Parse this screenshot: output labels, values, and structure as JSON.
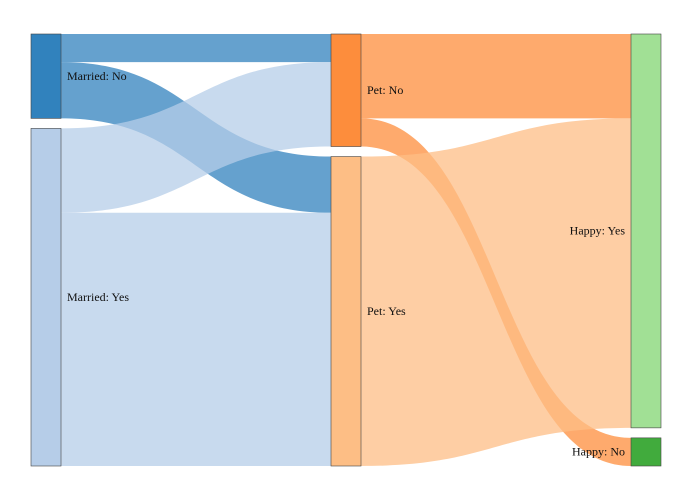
{
  "chart_data": {
    "type": "sankey",
    "title": "",
    "stages": [
      [
        "married_no",
        "married_yes"
      ],
      [
        "pet_no",
        "pet_yes"
      ],
      [
        "happy_yes",
        "happy_no"
      ]
    ],
    "nodes": [
      {
        "id": "married_no",
        "label": "Married: No",
        "color": "#3182bd",
        "label_side": "right"
      },
      {
        "id": "married_yes",
        "label": "Married: Yes",
        "color": "#b6cde8",
        "label_side": "right"
      },
      {
        "id": "pet_no",
        "label": "Pet: No",
        "color": "#fd8d3c",
        "label_side": "right"
      },
      {
        "id": "pet_yes",
        "label": "Pet: Yes",
        "color": "#fdbe85",
        "label_side": "right"
      },
      {
        "id": "happy_yes",
        "label": "Happy: Yes",
        "color": "#a1e095",
        "label_side": "left"
      },
      {
        "id": "happy_no",
        "label": "Happy: No",
        "color": "#41ab3d",
        "label_side": "left"
      }
    ],
    "links": [
      {
        "source": "married_no",
        "target": "pet_no",
        "value": 9,
        "color": "#3182bd"
      },
      {
        "source": "married_no",
        "target": "pet_yes",
        "value": 18,
        "color": "#3182bd"
      },
      {
        "source": "married_yes",
        "target": "pet_no",
        "value": 27,
        "color": "#b6cde8"
      },
      {
        "source": "married_yes",
        "target": "pet_yes",
        "value": 81,
        "color": "#b6cde8"
      },
      {
        "source": "pet_no",
        "target": "happy_yes",
        "value": 27,
        "color": "#fd8d3c"
      },
      {
        "source": "pet_no",
        "target": "happy_no",
        "value": 9,
        "color": "#fd8d3c"
      },
      {
        "source": "pet_yes",
        "target": "happy_yes",
        "value": 99,
        "color": "#fdbe85"
      }
    ]
  }
}
